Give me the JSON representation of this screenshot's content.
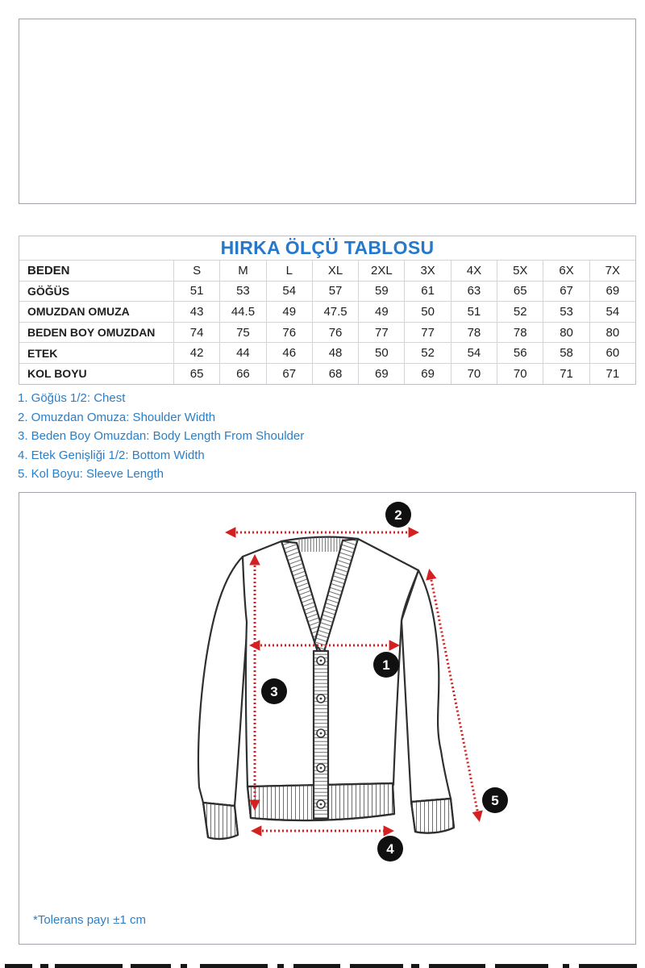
{
  "size_table": {
    "title": "HIRKA ÖLÇÜ TABLOSU",
    "header_label": "BEDEN",
    "sizes": [
      "S",
      "M",
      "L",
      "XL",
      "2XL",
      "3X",
      "4X",
      "5X",
      "6X",
      "7X"
    ],
    "rows": [
      {
        "label": "GÖĞÜS",
        "values": [
          "51",
          "53",
          "54",
          "57",
          "59",
          "61",
          "63",
          "65",
          "67",
          "69"
        ]
      },
      {
        "label": "OMUZDAN OMUZA",
        "values": [
          "43",
          "44.5",
          "49",
          "47.5",
          "49",
          "50",
          "51",
          "52",
          "53",
          "54"
        ]
      },
      {
        "label": "BEDEN BOY OMUZDAN",
        "values": [
          "74",
          "75",
          "76",
          "76",
          "77",
          "77",
          "78",
          "78",
          "80",
          "80"
        ]
      },
      {
        "label": "ETEK",
        "values": [
          "42",
          "44",
          "46",
          "48",
          "50",
          "52",
          "54",
          "56",
          "58",
          "60"
        ]
      },
      {
        "label": "KOL BOYU",
        "values": [
          "65",
          "66",
          "67",
          "68",
          "69",
          "69",
          "70",
          "70",
          "71",
          "71"
        ]
      }
    ]
  },
  "legend": {
    "items": [
      "1. Göğüs 1/2: Chest",
      "2. Omuzdan Omuza: Shoulder Width",
      "3. Beden Boy Omuzdan: Body Length From Shoulder",
      "4. Etek Genişliği 1/2: Bottom Width",
      "5. Kol Boyu: Sleeve Length"
    ]
  },
  "diagram": {
    "markers": [
      {
        "id": "chest",
        "label": "1"
      },
      {
        "id": "shoulder-width",
        "label": "2"
      },
      {
        "id": "body-length",
        "label": "3"
      },
      {
        "id": "bottom-width",
        "label": "4"
      },
      {
        "id": "sleeve-length",
        "label": "5"
      }
    ],
    "tolerance_note": "*Tolerans payı ±1 cm"
  },
  "colors": {
    "accent-blue": "#2478cd",
    "legend-blue": "#2b7ec6",
    "arrow-red": "#d42020",
    "marker-bg": "#101010",
    "outline-dark": "#2f2f2f",
    "table-border": "#bfbfc6",
    "grid-line": "#d4d4d8",
    "panel-border": "#a2a2aa"
  }
}
